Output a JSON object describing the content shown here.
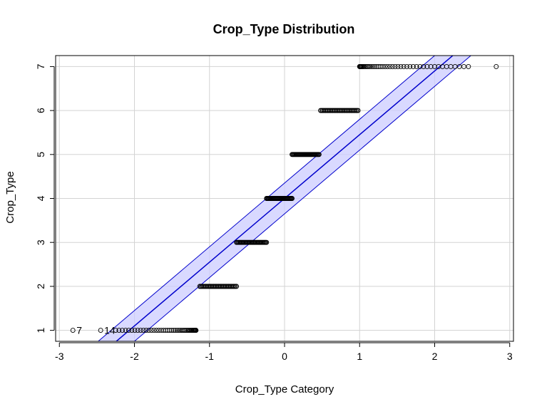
{
  "chart_data": {
    "type": "scatter",
    "title": "Crop_Type Distribution",
    "xlabel": "Crop_Type Category",
    "ylabel": "Crop_Type",
    "xlim": [
      -3.05,
      3.05
    ],
    "ylim": [
      0.75,
      7.25
    ],
    "xticks": [
      -3,
      -2,
      -1,
      0,
      1,
      2,
      3
    ],
    "yticks": [
      1,
      2,
      3,
      4,
      5,
      6,
      7
    ],
    "grid": true,
    "reference_line": {
      "slope": 1.45,
      "intercept": 4.0,
      "band_half_width": 0.35,
      "color": "#0000cc",
      "band_color": "#ccccff"
    },
    "level_ranges": [
      {
        "y": 1,
        "x_min": -2.82,
        "x_max": -1.18
      },
      {
        "y": 2,
        "x_min": -1.13,
        "x_max": -0.64
      },
      {
        "y": 3,
        "x_min": -0.64,
        "x_max": -0.24
      },
      {
        "y": 4,
        "x_min": -0.24,
        "x_max": 0.1
      },
      {
        "y": 5,
        "x_min": 0.1,
        "x_max": 0.46
      },
      {
        "y": 6,
        "x_min": 0.48,
        "x_max": 0.98
      },
      {
        "y": 7,
        "x_min": 1.0,
        "x_max": 2.82
      }
    ],
    "outliers": [
      {
        "x": -2.82,
        "y": 1,
        "label": "7"
      },
      {
        "x": -2.45,
        "y": 1,
        "label": "14"
      }
    ]
  }
}
